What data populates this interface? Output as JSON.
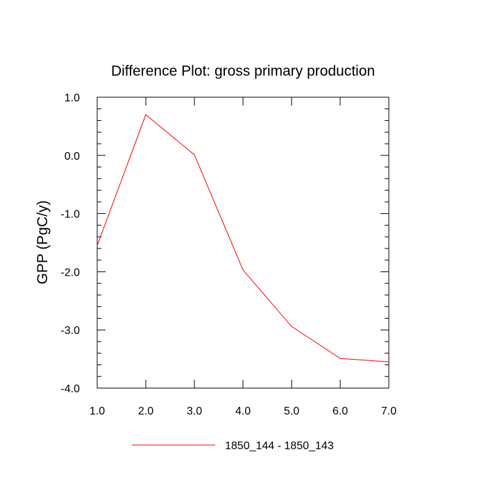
{
  "chart_data": {
    "type": "line",
    "title": "Difference Plot: gross primary production",
    "xlabel": "",
    "ylabel": "GPP  (PgC/y)",
    "xlim": [
      1.0,
      7.0
    ],
    "ylim": [
      -4.0,
      1.0
    ],
    "xticks": [
      1.0,
      2.0,
      3.0,
      4.0,
      5.0,
      6.0,
      7.0
    ],
    "xtick_labels": [
      "1.0",
      "2.0",
      "3.0",
      "4.0",
      "5.0",
      "6.0",
      "7.0"
    ],
    "yticks": [
      1.0,
      0.0,
      -1.0,
      -2.0,
      -3.0,
      -4.0
    ],
    "ytick_labels": [
      "1.0",
      "0.0",
      "-1.0",
      "-2.0",
      "-3.0",
      "-4.0"
    ],
    "grid": false,
    "legend_position": "bottom-center",
    "series": [
      {
        "name": "1850_144 - 1850_143",
        "color": "#ff0000",
        "x": [
          1.0,
          2.0,
          3.0,
          4.0,
          5.0,
          6.0,
          7.0
        ],
        "y": [
          -1.55,
          0.7,
          0.01,
          -1.97,
          -2.94,
          -3.49,
          -3.55
        ]
      }
    ]
  }
}
